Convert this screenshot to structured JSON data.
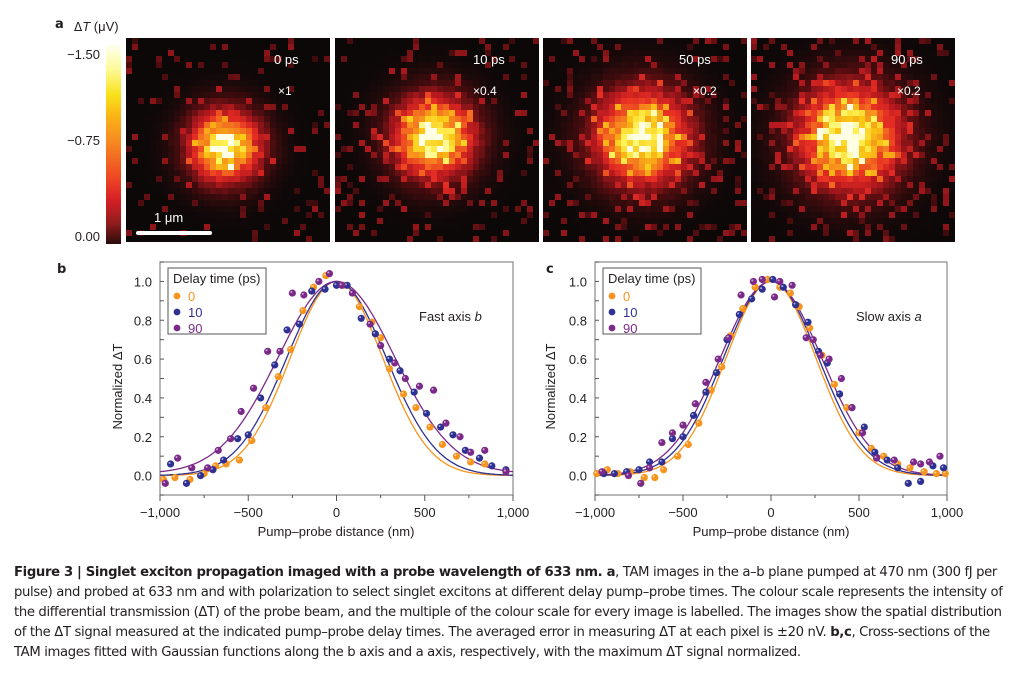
{
  "figure": {
    "panel_a": {
      "label": "a",
      "colorbar": {
        "title": "ΔT (μV)",
        "ticks": [
          "−1.50",
          "−0.75",
          "0.00"
        ],
        "range": [
          0.0,
          -1.5
        ],
        "colormap": "hot"
      },
      "scale_bar_label": "1 μm",
      "images": [
        {
          "delay": "0 ps",
          "multiplier": "×1",
          "spread": 0.55,
          "noise": 0.25
        },
        {
          "delay": "10 ps",
          "multiplier": "×0.4",
          "spread": 0.62,
          "noise": 0.35
        },
        {
          "delay": "50 ps",
          "multiplier": "×0.2",
          "spread": 0.72,
          "noise": 0.5
        },
        {
          "delay": "90 ps",
          "multiplier": "×0.2",
          "spread": 0.78,
          "noise": 0.55
        }
      ]
    },
    "caption": {
      "title_bold": "Figure 3 | Singlet exciton propagation imaged with a probe wavelength of 633 nm. a",
      "body": ", TAM images in the a–b plane pumped at 470 nm (300 fJ per pulse) and probed at 633 nm and with polarization to select singlet excitons at different delay pump–probe times. The colour scale represents the intensity of the differential transmission (ΔT) of the probe beam, and the multiple of the colour scale for every image is labelled. The images show the spatial distribution of the ΔT signal measured at the indicated pump–probe delay times. The averaged error in measuring ΔT at each pixel is ±20 nV. ",
      "bc_bold": "b,c",
      "tail": ", Cross-sections of the TAM images fitted with Gaussian functions along the b axis and a axis, respectively, with the maximum ΔT signal normalized."
    }
  },
  "chart_data": [
    {
      "panel": "b",
      "type": "scatter",
      "title": "",
      "annotation": "Fast axis b",
      "xlabel": "Pump–probe distance (nm)",
      "ylabel": "Normalized ΔT",
      "xlim": [
        -1000,
        1000
      ],
      "ylim": [
        -0.1,
        1.1
      ],
      "xticks": [
        -1000,
        -500,
        0,
        500,
        1000
      ],
      "xtick_labels": [
        "−1,000",
        "−500",
        "0",
        "500",
        "1,000"
      ],
      "yticks": [
        0.0,
        0.2,
        0.4,
        0.6,
        0.8,
        1.0
      ],
      "ytick_labels": [
        "0.0",
        "0.2",
        "0.4",
        "0.6",
        "0.8",
        "1.0"
      ],
      "legend": {
        "title": "Delay time (ps)",
        "position": "top-left"
      },
      "series": [
        {
          "name": "0",
          "color": "#f7941d",
          "x": [
            -980,
            -915,
            -830,
            -750,
            -685,
            -625,
            -550,
            -480,
            -400,
            -330,
            -260,
            -190,
            -130,
            -60,
            40,
            130,
            200,
            250,
            300,
            380,
            450,
            530,
            600,
            680,
            760,
            840,
            960
          ],
          "y": [
            -0.02,
            -0.01,
            -0.02,
            0.01,
            0.05,
            0.06,
            0.08,
            0.18,
            0.35,
            0.51,
            0.65,
            0.85,
            0.97,
            1.03,
            0.98,
            0.87,
            0.79,
            0.71,
            0.55,
            0.42,
            0.35,
            0.25,
            0.16,
            0.1,
            0.07,
            0.06,
            0.02
          ],
          "fit": {
            "amplitude": 1.0,
            "center": 0,
            "sigma": 262,
            "offset": 0.0
          }
        },
        {
          "name": "10",
          "color": "#2e3192",
          "x": [
            -940,
            -850,
            -770,
            -700,
            -640,
            -560,
            -500,
            -430,
            -350,
            -280,
            -210,
            -140,
            -65,
            0,
            60,
            140,
            220,
            300,
            360,
            440,
            510,
            590,
            660,
            730,
            810,
            880,
            960
          ],
          "y": [
            0.06,
            -0.04,
            0.0,
            0.03,
            0.08,
            0.19,
            0.21,
            0.4,
            0.57,
            0.75,
            0.78,
            0.95,
            0.96,
            0.98,
            0.98,
            0.81,
            0.73,
            0.6,
            0.54,
            0.43,
            0.32,
            0.25,
            0.21,
            0.13,
            0.09,
            0.05,
            0.03
          ],
          "fit": {
            "amplitude": 1.0,
            "center": 0,
            "sigma": 282,
            "offset": 0.0
          }
        },
        {
          "name": "90",
          "color": "#7b2a8a",
          "x": [
            -970,
            -900,
            -820,
            -730,
            -670,
            -600,
            -540,
            -470,
            -390,
            -320,
            -250,
            -185,
            -100,
            -40,
            30,
            90,
            190,
            250,
            330,
            390,
            470,
            550,
            620,
            700,
            760,
            840,
            960
          ],
          "y": [
            -0.04,
            0.09,
            0.04,
            0.04,
            0.13,
            0.19,
            0.33,
            0.45,
            0.64,
            0.64,
            0.94,
            0.93,
            1.0,
            1.04,
            0.98,
            0.94,
            0.78,
            0.67,
            0.58,
            0.5,
            0.46,
            0.44,
            0.27,
            0.2,
            0.12,
            0.13,
            0.02
          ],
          "fit": {
            "amplitude": 0.99,
            "center": 0,
            "sigma": 330,
            "offset": 0.01
          }
        }
      ]
    },
    {
      "panel": "c",
      "type": "scatter",
      "title": "",
      "annotation": "Slow axis a",
      "xlabel": "Pump–probe distance (nm)",
      "ylabel": "Normalized ΔT",
      "xlim": [
        -1000,
        1000
      ],
      "ylim": [
        -0.1,
        1.1
      ],
      "xticks": [
        -1000,
        -500,
        0,
        500,
        1000
      ],
      "xtick_labels": [
        "−1,000",
        "−500",
        "0",
        "500",
        "1,000"
      ],
      "yticks": [
        0.0,
        0.2,
        0.4,
        0.6,
        0.8,
        1.0
      ],
      "ytick_labels": [
        "0.0",
        "0.2",
        "0.4",
        "0.6",
        "0.8",
        "1.0"
      ],
      "legend": {
        "title": "Delay time (ps)",
        "position": "top-left"
      },
      "series": [
        {
          "name": "0",
          "color": "#f7941d",
          "x": [
            -990,
            -930,
            -870,
            -800,
            -720,
            -660,
            -610,
            -530,
            -470,
            -410,
            -340,
            -280,
            -230,
            -160,
            -90,
            -20,
            50,
            110,
            160,
            220,
            290,
            360,
            430,
            500,
            570,
            640,
            720,
            790,
            870,
            940,
            990
          ],
          "y": [
            0.01,
            0.03,
            0.01,
            0.02,
            -0.01,
            -0.01,
            0.03,
            0.1,
            0.16,
            0.27,
            0.44,
            0.56,
            0.72,
            0.86,
            0.97,
            1.01,
            0.97,
            0.94,
            0.87,
            0.76,
            0.62,
            0.47,
            0.35,
            0.22,
            0.14,
            0.1,
            0.06,
            0.04,
            0.02,
            0.01,
            0.01
          ],
          "fit": {
            "amplitude": 1.0,
            "center": 0,
            "sigma": 255,
            "offset": 0.0
          }
        },
        {
          "name": "10",
          "color": "#2e3192",
          "x": [
            -950,
            -890,
            -820,
            -750,
            -690,
            -620,
            -560,
            -500,
            -440,
            -370,
            -310,
            -250,
            -180,
            -110,
            -50,
            10,
            70,
            140,
            210,
            270,
            320,
            390,
            460,
            530,
            590,
            660,
            720,
            780,
            850,
            920,
            980
          ],
          "y": [
            0.01,
            0.01,
            0.02,
            0.03,
            0.07,
            0.07,
            0.19,
            0.2,
            0.31,
            0.43,
            0.53,
            0.7,
            0.83,
            0.91,
            0.96,
            1.01,
            0.97,
            0.88,
            0.79,
            0.64,
            0.58,
            0.42,
            0.35,
            0.25,
            0.12,
            0.08,
            0.04,
            -0.04,
            -0.03,
            0.05,
            0.04
          ],
          "fit": {
            "amplitude": 1.0,
            "center": 0,
            "sigma": 270,
            "offset": 0.0
          }
        },
        {
          "name": "90",
          "color": "#7b2a8a",
          "x": [
            -960,
            -810,
            -740,
            -690,
            -620,
            -560,
            -500,
            -430,
            -370,
            -300,
            -240,
            -170,
            -100,
            -50,
            20,
            50,
            120,
            200,
            240,
            280,
            330,
            400,
            460,
            520,
            600,
            700,
            810,
            850,
            900,
            960
          ],
          "y": [
            0.02,
            0.0,
            -0.04,
            0.04,
            0.17,
            0.22,
            0.26,
            0.37,
            0.48,
            0.6,
            0.71,
            0.93,
            1.0,
            1.01,
            0.92,
            1.0,
            0.98,
            0.71,
            0.7,
            0.62,
            0.6,
            0.5,
            0.35,
            0.22,
            0.09,
            0.08,
            0.07,
            0.06,
            0.07,
            0.1
          ],
          "fit": {
            "amplitude": 1.0,
            "center": 0,
            "sigma": 288,
            "offset": 0.0
          }
        }
      ]
    }
  ]
}
